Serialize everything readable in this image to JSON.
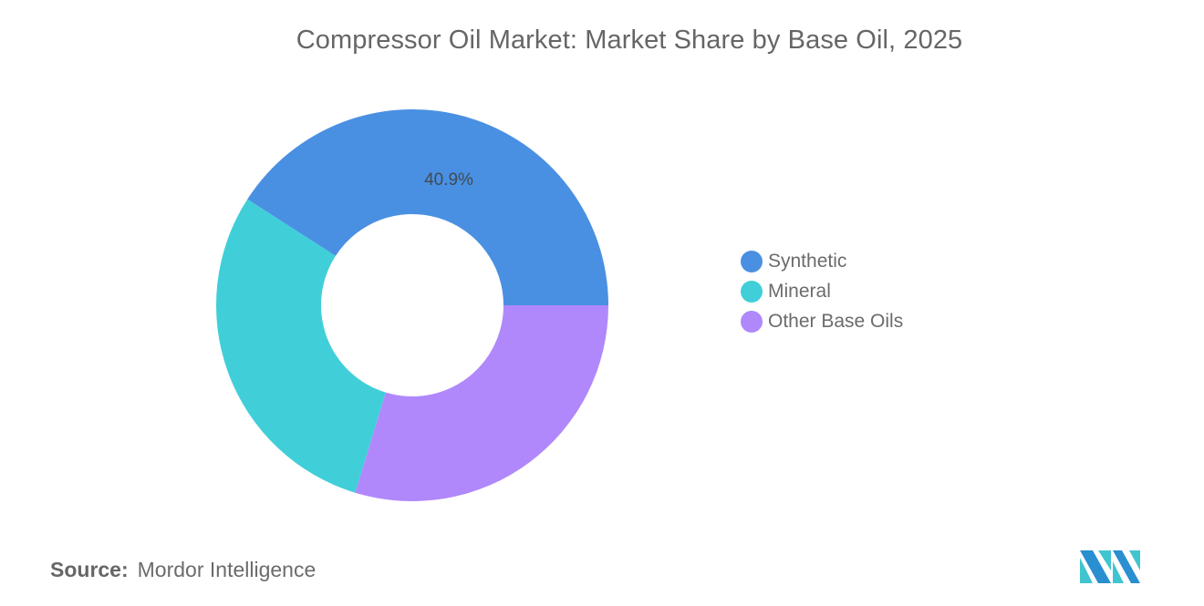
{
  "title": "Compressor Oil Market: Market Share by Base Oil, 2025",
  "chart_data": {
    "type": "pie",
    "subtype": "donut",
    "title": "Compressor Oil Market: Market Share by Base Oil, 2025",
    "categories": [
      "Synthetic",
      "Mineral",
      "Other Base Oils"
    ],
    "values": [
      40.9,
      29.4,
      29.7
    ],
    "colors": [
      "#4a90e2",
      "#40cfd9",
      "#b088fb"
    ],
    "data_labels": [
      "40.9%",
      "",
      ""
    ],
    "legend_position": "right"
  },
  "legend": {
    "items": [
      {
        "label": "Synthetic",
        "color": "#4a90e2"
      },
      {
        "label": "Mineral",
        "color": "#40cfd9"
      },
      {
        "label": "Other Base Oils",
        "color": "#b088fb"
      }
    ]
  },
  "slice_labels": {
    "synthetic": "40.9%"
  },
  "source": {
    "key": "Source:",
    "value": "Mordor Intelligence"
  },
  "logo": {
    "name": "mordor-intelligence-logo",
    "color_dark": "#2a8fd0",
    "color_light": "#40c5d0"
  }
}
